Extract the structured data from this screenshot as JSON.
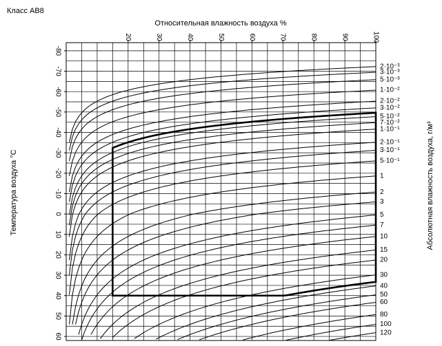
{
  "chart_data": {
    "type": "climatogram",
    "title": "Класс AB8",
    "x_label": "Относительная влажность воздуха %",
    "y_label": "Температура воздуха °C",
    "y2_label": "Абсолютная влажность воздуха, г/м³",
    "xlim": [
      0,
      100
    ],
    "xticks": [
      20,
      30,
      40,
      50,
      60,
      70,
      80,
      90,
      100
    ],
    "xgrid": [
      5,
      10,
      15,
      20,
      25,
      30,
      35,
      40,
      45,
      50,
      55,
      60,
      65,
      70,
      75,
      80,
      85,
      90,
      95,
      100
    ],
    "ylim": [
      -84,
      62
    ],
    "yticks": [
      -80,
      -70,
      -60,
      -50,
      -40,
      -30,
      -20,
      -10,
      0,
      10,
      20,
      30,
      40,
      50,
      60
    ],
    "ygrid": [
      -80,
      -75,
      -70,
      -65,
      -60,
      -55,
      -50,
      -45,
      -40,
      -35,
      -30,
      -25,
      -20,
      -15,
      -10,
      -5,
      0,
      5,
      10,
      15,
      20,
      25,
      30,
      35,
      40,
      45,
      50,
      55,
      60
    ],
    "y2ticks": [
      {
        "value": 0.002,
        "label": "2·10⁻³"
      },
      {
        "value": 0.003,
        "label": "3·10⁻³"
      },
      {
        "value": 0.005,
        "label": "5·10⁻³"
      },
      {
        "value": 0.01,
        "label": "1·10⁻²"
      },
      {
        "value": 0.02,
        "label": "2·10⁻²"
      },
      {
        "value": 0.03,
        "label": "3·10⁻²"
      },
      {
        "value": 0.05,
        "label": "5·10⁻²"
      },
      {
        "value": 0.07,
        "label": "7·10⁻²"
      },
      {
        "value": 0.1,
        "label": "1·10⁻¹"
      },
      {
        "value": 0.2,
        "label": "2·10⁻¹"
      },
      {
        "value": 0.3,
        "label": "3·10⁻¹"
      },
      {
        "value": 0.5,
        "label": "5·10⁻¹"
      },
      1,
      2,
      3,
      5,
      7,
      10,
      15,
      20,
      30,
      40,
      50,
      60,
      80,
      100,
      120
    ],
    "boundary": {
      "rh_min": 15,
      "temp_max": 40,
      "abs_humidity_min": 0.04,
      "abs_humidity_max": 36
    },
    "grid": true,
    "color": "#000000"
  }
}
